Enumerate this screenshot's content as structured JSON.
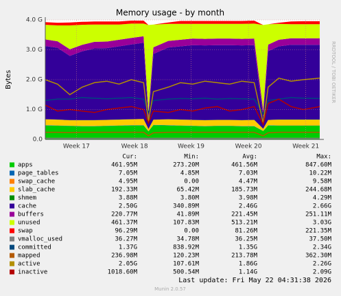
{
  "chart_data": {
    "type": "area",
    "title": "Memory usage - by month",
    "y_label": "Bytes",
    "watermark": "RRDTOOL / TOBI OETIKER",
    "last_update": "Last update: Fri May 22 04:31:38 2026",
    "footer": "Munin 2.0.57",
    "grid": true,
    "xlim": [
      0,
      33.5
    ],
    "xticks": [
      {
        "value": 3.8,
        "label": "Week 17"
      },
      {
        "value": 10.9,
        "label": "Week 18"
      },
      {
        "value": 17.8,
        "label": "Week 19"
      },
      {
        "value": 24.8,
        "label": "Week 20"
      },
      {
        "value": 31.8,
        "label": "Week 21"
      }
    ],
    "ylim": [
      0,
      4.0
    ],
    "yticks": [
      {
        "value": 0,
        "label": "0.0"
      },
      {
        "value": 1,
        "label": "1.0 G"
      },
      {
        "value": 2,
        "label": "2.0 G"
      },
      {
        "value": 3,
        "label": "3.0 G"
      },
      {
        "value": 4,
        "label": "4.0 G"
      }
    ],
    "x": [
      0,
      1.5,
      3,
      4.5,
      6,
      7.5,
      9,
      10.5,
      12,
      12.6,
      13.2,
      15,
      16.5,
      18,
      19.5,
      21,
      22.5,
      24,
      25.5,
      26.6,
      27.2,
      28.5,
      30,
      31.5,
      33.5
    ],
    "summary_headers": [
      "Cur:",
      "Min:",
      "Avg:",
      "Max:"
    ],
    "series": [
      {
        "name": "apps",
        "color": "#00cc00",
        "style": "area",
        "summary": [
          "461.95M",
          "273.20M",
          "461.56M",
          "847.60M"
        ],
        "values": [
          0.47,
          0.46,
          0.45,
          0.44,
          0.44,
          0.45,
          0.46,
          0.47,
          0.47,
          0.27,
          0.48,
          0.47,
          0.46,
          0.45,
          0.44,
          0.45,
          0.45,
          0.44,
          0.44,
          0.28,
          0.47,
          0.46,
          0.46,
          0.46,
          0.46
        ]
      },
      {
        "name": "page_tables",
        "color": "#0066b3",
        "style": "area",
        "summary": [
          "7.05M",
          "4.85M",
          "7.03M",
          "10.22M"
        ],
        "values": [
          0.007,
          0.007,
          0.007,
          0.007,
          0.007,
          0.007,
          0.007,
          0.007,
          0.007,
          0.005,
          0.007,
          0.007,
          0.007,
          0.007,
          0.007,
          0.007,
          0.007,
          0.007,
          0.007,
          0.005,
          0.007,
          0.007,
          0.007,
          0.007,
          0.007
        ]
      },
      {
        "name": "swap_cache",
        "color": "#ff8000",
        "style": "area",
        "summary": [
          "4.95M",
          "0.00",
          "4.47M",
          "9.58M"
        ],
        "values": [
          0.005,
          0.005,
          0.005,
          0.005,
          0.005,
          0.005,
          0.005,
          0.005,
          0.005,
          0,
          0.002,
          0.005,
          0.005,
          0.005,
          0.005,
          0.005,
          0.005,
          0.005,
          0.005,
          0,
          0.002,
          0.005,
          0.005,
          0.005,
          0.005
        ]
      },
      {
        "name": "slab_cache",
        "color": "#ffcc00",
        "style": "area",
        "summary": [
          "192.33M",
          "65.42M",
          "185.73M",
          "244.68M"
        ],
        "values": [
          0.19,
          0.19,
          0.18,
          0.19,
          0.19,
          0.19,
          0.19,
          0.19,
          0.2,
          0.07,
          0.17,
          0.19,
          0.19,
          0.19,
          0.19,
          0.19,
          0.19,
          0.19,
          0.2,
          0.07,
          0.17,
          0.19,
          0.19,
          0.19,
          0.19
        ]
      },
      {
        "name": "shmem",
        "color": "#008f00",
        "style": "area",
        "summary": [
          "3.88M",
          "3.80M",
          "3.98M",
          "4.29M"
        ],
        "values": [
          0.004,
          0.004,
          0.004,
          0.004,
          0.004,
          0.004,
          0.004,
          0.004,
          0.004,
          0.004,
          0.004,
          0.004,
          0.004,
          0.004,
          0.004,
          0.004,
          0.004,
          0.004,
          0.004,
          0.004,
          0.004,
          0.004,
          0.004,
          0.004,
          0.004
        ]
      },
      {
        "name": "cache",
        "color": "#330099",
        "style": "area",
        "summary": [
          "2.50G",
          "340.89M",
          "2.46G",
          "2.66G"
        ],
        "values": [
          2.45,
          2.4,
          2.15,
          2.3,
          2.4,
          2.4,
          2.45,
          2.5,
          2.55,
          0.34,
          2.2,
          2.4,
          2.45,
          2.5,
          2.5,
          2.5,
          2.5,
          2.5,
          2.5,
          0.4,
          2.3,
          2.45,
          2.5,
          2.5,
          2.5
        ]
      },
      {
        "name": "buffers",
        "color": "#990099",
        "style": "area",
        "summary": [
          "220.77M",
          "41.89M",
          "221.45M",
          "251.11M"
        ],
        "values": [
          0.22,
          0.22,
          0.22,
          0.22,
          0.22,
          0.22,
          0.22,
          0.22,
          0.22,
          0.22,
          0.22,
          0.22,
          0.22,
          0.22,
          0.22,
          0.22,
          0.22,
          0.22,
          0.22,
          0.22,
          0.22,
          0.22,
          0.22,
          0.22,
          0.22
        ]
      },
      {
        "name": "unused",
        "color": "#ccff00",
        "style": "area",
        "summary": [
          "461.37M",
          "107.83M",
          "513.21M",
          "3.03G"
        ],
        "values": [
          0.49,
          0.53,
          0.8,
          0.67,
          0.58,
          0.57,
          0.51,
          0.48,
          0.42,
          2.92,
          0.76,
          0.57,
          0.53,
          0.49,
          0.5,
          0.49,
          0.49,
          0.5,
          0.5,
          2.85,
          0.68,
          0.53,
          0.47,
          0.47,
          0.47
        ]
      },
      {
        "name": "swap",
        "color": "#ff0000",
        "style": "area",
        "summary": [
          "96.29M",
          "0.00",
          "81.26M",
          "221.35M"
        ],
        "values": [
          0.09,
          0.09,
          0.1,
          0.1,
          0.1,
          0.1,
          0.1,
          0.1,
          0.1,
          0,
          0,
          0.05,
          0.1,
          0.1,
          0.1,
          0.1,
          0.1,
          0.1,
          0.1,
          0,
          0,
          0.04,
          0.09,
          0.1,
          0.1
        ]
      },
      {
        "name": "vmalloc_used",
        "color": "#808080",
        "style": "line",
        "summary": [
          "36.27M",
          "34.78M",
          "36.25M",
          "37.50M"
        ],
        "values": [
          0.036,
          0.036,
          0.036,
          0.036,
          0.036,
          0.036,
          0.036,
          0.036,
          0.036,
          0.035,
          0.036,
          0.036,
          0.036,
          0.036,
          0.036,
          0.036,
          0.036,
          0.036,
          0.036,
          0.035,
          0.036,
          0.036,
          0.036,
          0.036,
          0.036
        ]
      },
      {
        "name": "committed",
        "color": "#00487d",
        "style": "line",
        "summary": [
          "1.37G",
          "838.92M",
          "1.35G",
          "2.34G"
        ],
        "values": [
          1.3,
          1.35,
          1.35,
          1.4,
          1.38,
          1.36,
          1.38,
          1.4,
          1.35,
          0.9,
          1.3,
          1.35,
          1.37,
          1.36,
          1.38,
          1.35,
          1.37,
          1.36,
          1.35,
          0.85,
          1.3,
          1.35,
          1.4,
          1.38,
          1.37
        ]
      },
      {
        "name": "mapped",
        "color": "#b35a00",
        "style": "line",
        "summary": [
          "236.98M",
          "120.23M",
          "213.78M",
          "362.30M"
        ],
        "values": [
          0.24,
          0.24,
          0.23,
          0.24,
          0.24,
          0.24,
          0.24,
          0.24,
          0.24,
          0.12,
          0.22,
          0.24,
          0.24,
          0.24,
          0.24,
          0.24,
          0.24,
          0.24,
          0.24,
          0.12,
          0.22,
          0.24,
          0.24,
          0.24,
          0.24
        ]
      },
      {
        "name": "active",
        "color": "#b38f00",
        "style": "line",
        "summary": [
          "2.05G",
          "107.61M",
          "1.86G",
          "2.26G"
        ],
        "values": [
          2.0,
          1.85,
          1.5,
          1.75,
          1.9,
          1.95,
          1.85,
          2.0,
          1.9,
          0.6,
          1.6,
          1.75,
          1.9,
          1.85,
          1.95,
          1.9,
          1.85,
          1.95,
          1.9,
          0.55,
          1.75,
          2.05,
          1.95,
          2.0,
          2.05
        ]
      },
      {
        "name": "inactive",
        "color": "#b30000",
        "style": "line",
        "summary": [
          "1018.60M",
          "500.54M",
          "1.14G",
          "2.09G"
        ],
        "values": [
          1.15,
          0.95,
          1.0,
          0.95,
          0.9,
          1.0,
          1.05,
          1.1,
          1.0,
          0.55,
          0.95,
          0.9,
          1.0,
          0.95,
          1.05,
          1.1,
          0.95,
          1.0,
          1.1,
          0.5,
          1.2,
          1.35,
          1.1,
          1.0,
          1.1
        ]
      }
    ]
  }
}
